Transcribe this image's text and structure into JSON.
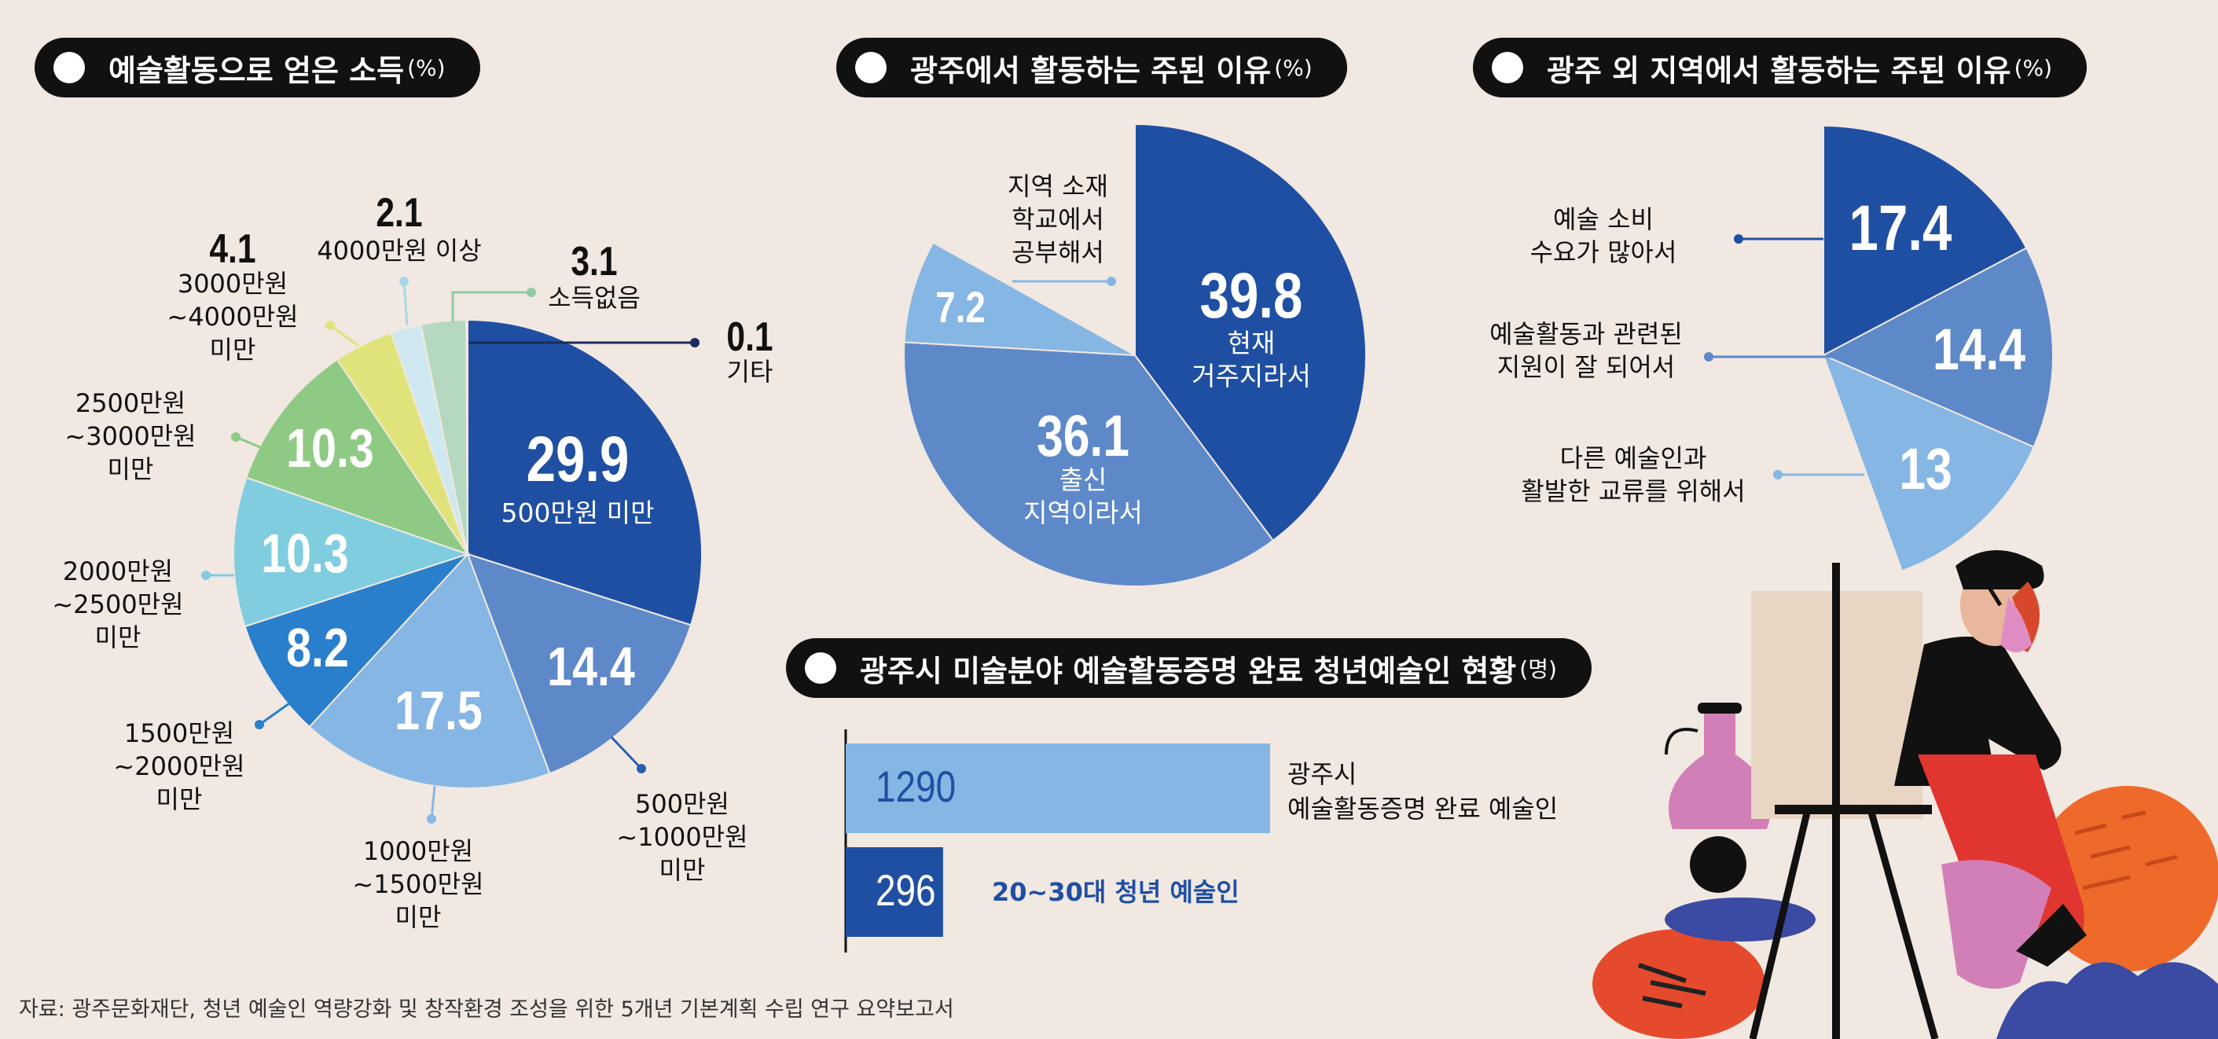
{
  "titles": {
    "income": {
      "text": "예술활동으로 얻은 소득",
      "unit": "(%)"
    },
    "gwangju": {
      "text": "광주에서 활동하는 주된 이유",
      "unit": "(%)"
    },
    "outside": {
      "text": "광주 외 지역에서 활동하는 주된 이유",
      "unit": "(%)"
    },
    "certified": {
      "text": "광주시 미술분야 예술활동증명 완료 청년예술인 현황",
      "unit": "(명)"
    }
  },
  "source": "자료: 광주문화재단, 청년 예술인 역량강화 및 창작환경 조성을 위한 5개년 기본계획 수립 연구 요약보고서",
  "colors": {
    "background": "#f0e8e1",
    "navy": "#1f4fa3",
    "mid_blue": "#5e89c9",
    "light_blue": "#86b6e4",
    "royal": "#2a7fcc",
    "cyan": "#80cde0",
    "green": "#8fca84",
    "yellow": "#e0e37a",
    "pale_cyan": "#cfe8ef",
    "mint": "#b4d9c0"
  },
  "chart_data": [
    {
      "type": "pie",
      "title": "예술활동으로 얻은 소득",
      "unit": "(%)",
      "slices": [
        {
          "value": 29.9,
          "value_text": "29.9",
          "label": "500만원 미만",
          "color": "#1f4fa3"
        },
        {
          "value": 14.4,
          "value_text": "14.4",
          "label": "500만원 ~1000만원 미만",
          "color": "#5e89c9"
        },
        {
          "value": 17.5,
          "value_text": "17.5",
          "label": "1000만원 ~1500만원 미만",
          "color": "#86b6e4"
        },
        {
          "value": 8.2,
          "value_text": "8.2",
          "label": "1500만원 ~2000만원 미만",
          "color": "#2a7fcc"
        },
        {
          "value": 10.3,
          "value_text": "10.3",
          "label": "2000만원 ~2500만원 미만",
          "color": "#80cde0"
        },
        {
          "value": 10.3,
          "value_text": "10.3",
          "label": "2500만원 ~3000만원 미만",
          "color": "#8fca84"
        },
        {
          "value": 4.1,
          "value_text": "4.1",
          "label": "3000만원 ~4000만원 미만",
          "color": "#e0e37a"
        },
        {
          "value": 2.1,
          "value_text": "2.1",
          "label": "4000만원 이상",
          "color": "#cfe8ef"
        },
        {
          "value": 3.1,
          "value_text": "3.1",
          "label": "소득없음",
          "color": "#b4d9c0"
        },
        {
          "value": 0.1,
          "value_text": "0.1",
          "label": "기타",
          "color": "#1a2c5a"
        }
      ]
    },
    {
      "type": "pie",
      "title": "광주에서 활동하는 주된 이유",
      "unit": "(%)",
      "slices": [
        {
          "value": 39.8,
          "value_text": "39.8",
          "label": "현재 거주지라서",
          "color": "#1f4fa3"
        },
        {
          "value": 36.1,
          "value_text": "36.1",
          "label": "출신 지역이라서",
          "color": "#5e89c9"
        },
        {
          "value": 7.2,
          "value_text": "7.2",
          "label": "지역 소재 학교에서 공부해서",
          "color": "#86b6e4"
        }
      ]
    },
    {
      "type": "pie",
      "title": "광주 외 지역에서 활동하는 주된 이유",
      "unit": "(%)",
      "slices": [
        {
          "value": 17.4,
          "value_text": "17.4",
          "label": "예술 소비 수요가 많아서",
          "color": "#1f4fa3"
        },
        {
          "value": 14.4,
          "value_text": "14.4",
          "label": "예술활동과 관련된 지원이 잘 되어서",
          "color": "#5e89c9"
        },
        {
          "value": 13,
          "value_text": "13",
          "label": "다른 예술인과 활발한 교류를 위해서",
          "color": "#86b6e4"
        }
      ]
    },
    {
      "type": "bar",
      "title": "광주시 미술분야 예술활동증명 완료 청년예술인 현황",
      "unit": "(명)",
      "bars": [
        {
          "value": 1290,
          "value_text": "1290",
          "label": "광주시 예술활동증명 완료 예술인",
          "color": "#86b6e4"
        },
        {
          "value": 296,
          "value_text": "296",
          "label": "20~30대 청년 예술인",
          "color": "#1f4fa3"
        }
      ]
    }
  ]
}
